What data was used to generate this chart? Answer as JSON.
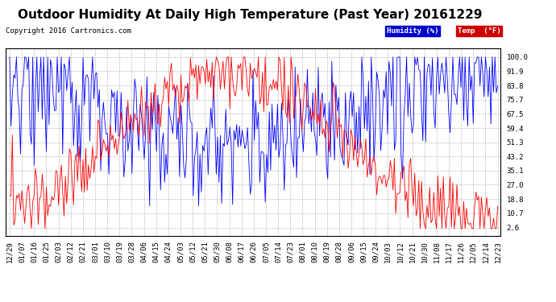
{
  "title": "Outdoor Humidity At Daily High Temperature (Past Year) 20161229",
  "copyright": "Copyright 2016 Cartronics.com",
  "legend_humidity_label": "Humidity (%)",
  "legend_temp_label": "Temp  (°F)",
  "humidity_color": "#0000ff",
  "temp_color": "#ff0000",
  "legend_humidity_bg": "#0000cc",
  "legend_temp_bg": "#cc0000",
  "background_color": "#ffffff",
  "plot_bg_color": "#ffffff",
  "grid_color": "#999999",
  "yticks": [
    2.6,
    10.7,
    18.8,
    27.0,
    35.1,
    43.2,
    51.3,
    59.4,
    67.5,
    75.7,
    83.8,
    91.9,
    100.0
  ],
  "ylim": [
    -2,
    105
  ],
  "title_fontsize": 11,
  "copyright_fontsize": 6.5,
  "tick_fontsize": 6.5,
  "x_labels": [
    "12/29",
    "01/07",
    "01/16",
    "01/25",
    "02/03",
    "02/12",
    "02/21",
    "03/01",
    "03/10",
    "03/19",
    "03/28",
    "04/06",
    "04/15",
    "04/24",
    "05/03",
    "05/12",
    "05/21",
    "05/30",
    "06/08",
    "06/17",
    "06/26",
    "07/05",
    "07/14",
    "07/23",
    "08/01",
    "08/10",
    "08/19",
    "08/28",
    "09/06",
    "09/15",
    "09/24",
    "10/03",
    "10/12",
    "10/21",
    "10/30",
    "11/08",
    "11/17",
    "11/26",
    "12/05",
    "12/14",
    "12/23"
  ]
}
